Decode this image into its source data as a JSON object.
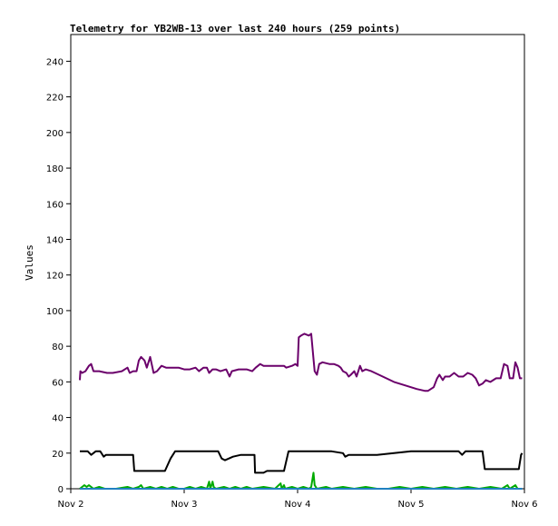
{
  "chart_data": {
    "type": "line",
    "title": "Telemetry for YB2WB-13 over last 240 hours (259 points)",
    "ylabel": "Values",
    "xlabel": "",
    "ylim": [
      0,
      255
    ],
    "yticks": [
      0,
      20,
      40,
      60,
      80,
      100,
      120,
      140,
      160,
      180,
      200,
      220,
      240
    ],
    "x_range_days": [
      "Nov 2",
      "Nov 6"
    ],
    "xticks": [
      "Nov 2",
      "Nov 3",
      "Nov 4",
      "Nov 5",
      "Nov 6"
    ],
    "grid": false,
    "series": [
      {
        "color": "#6b006b",
        "points": [
          [
            2.08,
            61
          ],
          [
            2.085,
            66
          ],
          [
            2.1,
            65
          ],
          [
            2.13,
            66
          ],
          [
            2.16,
            69
          ],
          [
            2.18,
            70
          ],
          [
            2.2,
            66
          ],
          [
            2.25,
            66
          ],
          [
            2.32,
            65
          ],
          [
            2.37,
            65
          ],
          [
            2.45,
            66
          ],
          [
            2.5,
            68
          ],
          [
            2.52,
            65
          ],
          [
            2.55,
            66
          ],
          [
            2.58,
            66
          ],
          [
            2.6,
            72
          ],
          [
            2.62,
            74
          ],
          [
            2.65,
            72
          ],
          [
            2.67,
            68
          ],
          [
            2.7,
            74
          ],
          [
            2.73,
            65
          ],
          [
            2.76,
            66
          ],
          [
            2.8,
            69
          ],
          [
            2.84,
            68
          ],
          [
            2.9,
            68
          ],
          [
            2.95,
            68
          ],
          [
            3.0,
            67
          ],
          [
            3.05,
            67
          ],
          [
            3.1,
            68
          ],
          [
            3.13,
            66
          ],
          [
            3.17,
            68
          ],
          [
            3.2,
            68
          ],
          [
            3.22,
            65
          ],
          [
            3.25,
            67
          ],
          [
            3.28,
            67
          ],
          [
            3.32,
            66
          ],
          [
            3.37,
            67
          ],
          [
            3.4,
            63
          ],
          [
            3.42,
            66
          ],
          [
            3.48,
            67
          ],
          [
            3.55,
            67
          ],
          [
            3.6,
            66
          ],
          [
            3.63,
            68
          ],
          [
            3.67,
            70
          ],
          [
            3.7,
            69
          ],
          [
            3.78,
            69
          ],
          [
            3.83,
            69
          ],
          [
            3.88,
            69
          ],
          [
            3.9,
            68
          ],
          [
            3.95,
            69
          ],
          [
            3.98,
            70
          ],
          [
            4.0,
            69
          ],
          [
            4.01,
            85
          ],
          [
            4.03,
            86
          ],
          [
            4.06,
            87
          ],
          [
            4.1,
            86
          ],
          [
            4.12,
            87
          ],
          [
            4.14,
            73
          ],
          [
            4.15,
            66
          ],
          [
            4.17,
            64
          ],
          [
            4.19,
            70
          ],
          [
            4.22,
            71
          ],
          [
            4.28,
            70
          ],
          [
            4.32,
            70
          ],
          [
            4.36,
            69
          ],
          [
            4.38,
            68
          ],
          [
            4.4,
            66
          ],
          [
            4.43,
            65
          ],
          [
            4.45,
            63
          ],
          [
            4.47,
            64
          ],
          [
            4.5,
            66
          ],
          [
            4.52,
            63
          ],
          [
            4.55,
            69
          ],
          [
            4.57,
            66
          ],
          [
            4.6,
            67
          ],
          [
            4.65,
            66
          ],
          [
            4.75,
            63
          ],
          [
            4.85,
            60
          ],
          [
            4.95,
            58
          ],
          [
            5.05,
            56
          ],
          [
            5.12,
            55
          ],
          [
            5.15,
            55
          ],
          [
            5.2,
            57
          ],
          [
            5.23,
            62
          ],
          [
            5.25,
            64
          ],
          [
            5.28,
            61
          ],
          [
            5.3,
            63
          ],
          [
            5.34,
            63
          ],
          [
            5.38,
            65
          ],
          [
            5.42,
            63
          ],
          [
            5.46,
            63
          ],
          [
            5.5,
            65
          ],
          [
            5.54,
            64
          ],
          [
            5.57,
            62
          ],
          [
            5.6,
            58
          ],
          [
            5.63,
            59
          ],
          [
            5.66,
            61
          ],
          [
            5.7,
            60
          ],
          [
            5.75,
            62
          ],
          [
            5.79,
            62
          ],
          [
            5.82,
            70
          ],
          [
            5.85,
            69
          ],
          [
            5.87,
            62
          ],
          [
            5.9,
            62
          ],
          [
            5.92,
            71
          ],
          [
            5.94,
            68
          ],
          [
            5.96,
            62
          ],
          [
            5.98,
            62
          ]
        ]
      },
      {
        "color": "#000000",
        "points": [
          [
            2.08,
            21
          ],
          [
            2.15,
            21
          ],
          [
            2.18,
            19
          ],
          [
            2.22,
            21
          ],
          [
            2.26,
            21
          ],
          [
            2.29,
            18
          ],
          [
            2.31,
            19
          ],
          [
            2.35,
            19
          ],
          [
            2.42,
            19
          ],
          [
            2.55,
            19
          ],
          [
            2.56,
            10
          ],
          [
            2.7,
            10
          ],
          [
            2.83,
            10
          ],
          [
            2.88,
            17
          ],
          [
            2.92,
            21
          ],
          [
            3.0,
            21
          ],
          [
            3.1,
            21
          ],
          [
            3.2,
            21
          ],
          [
            3.3,
            21
          ],
          [
            3.33,
            17
          ],
          [
            3.36,
            16
          ],
          [
            3.43,
            18
          ],
          [
            3.5,
            19
          ],
          [
            3.58,
            19
          ],
          [
            3.62,
            19
          ],
          [
            3.625,
            9
          ],
          [
            3.7,
            9
          ],
          [
            3.73,
            10
          ],
          [
            3.85,
            10
          ],
          [
            3.88,
            10
          ],
          [
            3.92,
            21
          ],
          [
            4.0,
            21
          ],
          [
            4.15,
            21
          ],
          [
            4.3,
            21
          ],
          [
            4.4,
            20
          ],
          [
            4.42,
            18
          ],
          [
            4.45,
            19
          ],
          [
            4.55,
            19
          ],
          [
            4.7,
            19
          ],
          [
            4.85,
            20
          ],
          [
            5.0,
            21
          ],
          [
            5.15,
            21
          ],
          [
            5.3,
            21
          ],
          [
            5.42,
            21
          ],
          [
            5.45,
            19
          ],
          [
            5.48,
            21
          ],
          [
            5.63,
            21
          ],
          [
            5.65,
            11
          ],
          [
            5.75,
            11
          ],
          [
            5.85,
            11
          ],
          [
            5.95,
            11
          ],
          [
            5.97,
            19
          ],
          [
            5.98,
            20
          ]
        ]
      },
      {
        "color": "#00aa00",
        "points": [
          [
            2.08,
            0
          ],
          [
            2.1,
            1
          ],
          [
            2.12,
            2
          ],
          [
            2.14,
            1
          ],
          [
            2.16,
            2
          ],
          [
            2.18,
            1
          ],
          [
            2.2,
            0
          ],
          [
            2.25,
            1
          ],
          [
            2.3,
            0
          ],
          [
            2.4,
            0
          ],
          [
            2.5,
            1
          ],
          [
            2.55,
            0
          ],
          [
            2.6,
            1
          ],
          [
            2.62,
            2
          ],
          [
            2.64,
            0
          ],
          [
            2.7,
            1
          ],
          [
            2.75,
            0
          ],
          [
            2.8,
            1
          ],
          [
            2.85,
            0
          ],
          [
            2.9,
            1
          ],
          [
            2.95,
            0
          ],
          [
            3.0,
            0
          ],
          [
            3.05,
            1
          ],
          [
            3.1,
            0
          ],
          [
            3.15,
            1
          ],
          [
            3.2,
            0
          ],
          [
            3.22,
            4
          ],
          [
            3.23,
            0
          ],
          [
            3.25,
            4
          ],
          [
            3.26,
            1
          ],
          [
            3.28,
            0
          ],
          [
            3.35,
            1
          ],
          [
            3.4,
            0
          ],
          [
            3.45,
            1
          ],
          [
            3.5,
            0
          ],
          [
            3.55,
            1
          ],
          [
            3.6,
            0
          ],
          [
            3.7,
            1
          ],
          [
            3.8,
            0
          ],
          [
            3.85,
            3
          ],
          [
            3.86,
            0
          ],
          [
            3.88,
            2
          ],
          [
            3.89,
            0
          ],
          [
            3.95,
            1
          ],
          [
            4.0,
            0
          ],
          [
            4.05,
            1
          ],
          [
            4.1,
            0
          ],
          [
            4.12,
            1
          ],
          [
            4.14,
            9
          ],
          [
            4.15,
            2
          ],
          [
            4.17,
            0
          ],
          [
            4.25,
            1
          ],
          [
            4.3,
            0
          ],
          [
            4.4,
            1
          ],
          [
            4.5,
            0
          ],
          [
            4.6,
            1
          ],
          [
            4.7,
            0
          ],
          [
            4.8,
            0
          ],
          [
            4.9,
            1
          ],
          [
            5.0,
            0
          ],
          [
            5.1,
            1
          ],
          [
            5.2,
            0
          ],
          [
            5.3,
            1
          ],
          [
            5.4,
            0
          ],
          [
            5.5,
            1
          ],
          [
            5.6,
            0
          ],
          [
            5.7,
            1
          ],
          [
            5.8,
            0
          ],
          [
            5.85,
            2
          ],
          [
            5.87,
            0
          ],
          [
            5.92,
            2
          ],
          [
            5.94,
            0
          ],
          [
            5.98,
            0
          ]
        ]
      },
      {
        "color": "#2080c0",
        "points": [
          [
            2.08,
            0
          ],
          [
            2.5,
            0
          ],
          [
            3.0,
            0
          ],
          [
            3.5,
            0
          ],
          [
            4.0,
            0
          ],
          [
            4.5,
            0
          ],
          [
            5.0,
            0
          ],
          [
            5.5,
            0
          ],
          [
            5.98,
            0
          ]
        ]
      }
    ]
  }
}
